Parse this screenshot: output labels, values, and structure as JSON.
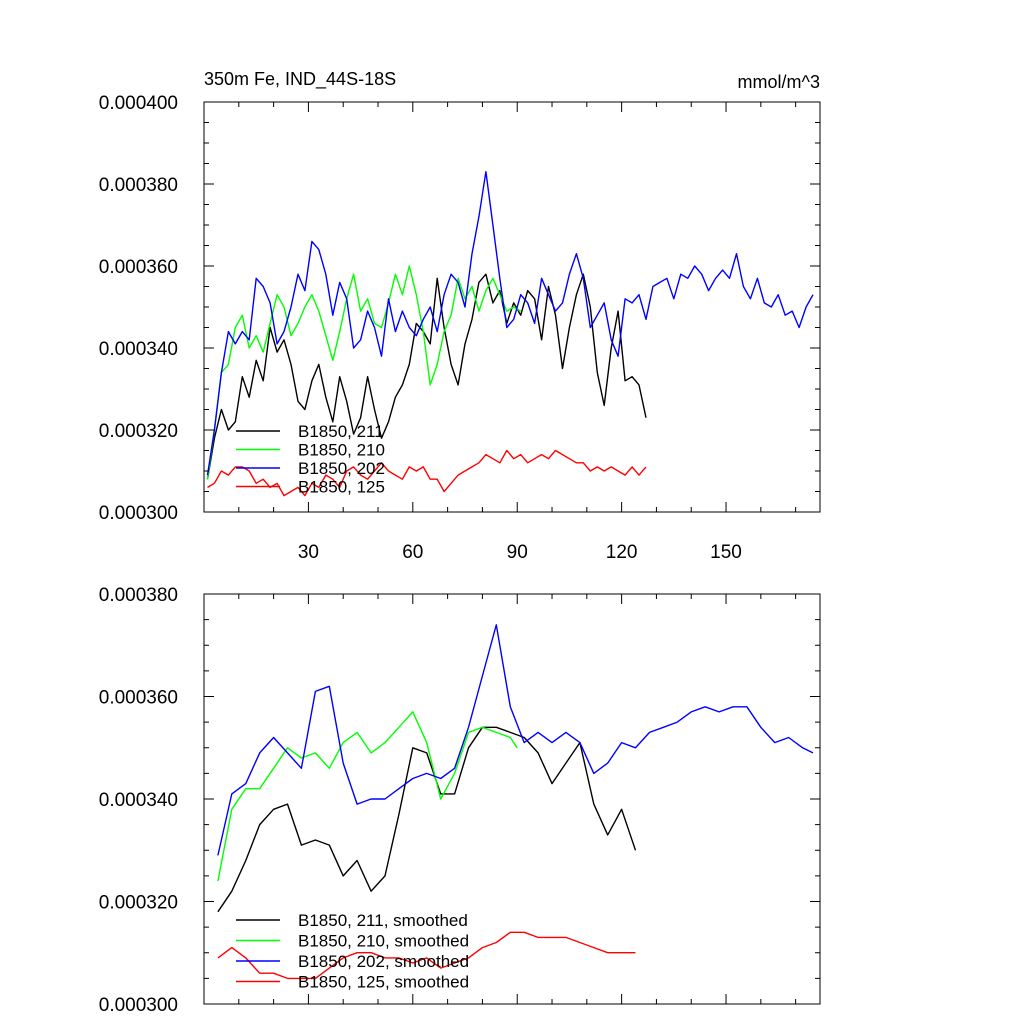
{
  "chart_data": [
    {
      "type": "line",
      "title_left": "350m Fe, IND_44S-18S",
      "title_right": "mmol/m^3",
      "xlim": [
        0,
        177
      ],
      "ylim": [
        0.0003,
        0.0004
      ],
      "x_ticks": [
        30,
        60,
        90,
        120,
        150
      ],
      "x_tick_labels": [
        "30",
        "60",
        "90",
        "120",
        "150"
      ],
      "y_ticks": [
        0.0003,
        0.00032,
        0.00034,
        0.00036,
        0.00038,
        0.0004
      ],
      "y_tick_labels": [
        "0.000300",
        "0.000320",
        "0.000340",
        "0.000360",
        "0.000380",
        "0.000400"
      ],
      "legend_position": "bottom-left",
      "series": [
        {
          "name": "B1850, 211",
          "color": "#000000",
          "x": [
            1,
            3,
            5,
            7,
            9,
            11,
            13,
            15,
            17,
            19,
            21,
            23,
            25,
            27,
            29,
            31,
            33,
            35,
            37,
            39,
            41,
            43,
            45,
            47,
            49,
            51,
            53,
            55,
            57,
            59,
            61,
            63,
            65,
            67,
            69,
            71,
            73,
            75,
            77,
            79,
            81,
            83,
            85,
            87,
            89,
            91,
            93,
            95,
            97,
            99,
            101,
            103,
            105,
            107,
            109,
            111,
            113,
            115,
            117,
            119,
            121,
            123,
            125,
            127
          ],
          "y": [
            0.000308,
            0.000318,
            0.000325,
            0.00032,
            0.000322,
            0.000333,
            0.000328,
            0.000337,
            0.000332,
            0.000345,
            0.000339,
            0.000342,
            0.000336,
            0.000327,
            0.000325,
            0.000332,
            0.000336,
            0.000328,
            0.000322,
            0.000333,
            0.000327,
            0.000319,
            0.000323,
            0.000333,
            0.000325,
            0.000318,
            0.000322,
            0.000328,
            0.000331,
            0.000336,
            0.000346,
            0.000344,
            0.000341,
            0.000357,
            0.000345,
            0.000336,
            0.000331,
            0.000341,
            0.000347,
            0.000356,
            0.000358,
            0.000351,
            0.000354,
            0.000346,
            0.000351,
            0.000348,
            0.000354,
            0.000352,
            0.000342,
            0.000355,
            0.000348,
            0.000335,
            0.000345,
            0.000353,
            0.000358,
            0.00035,
            0.000334,
            0.000326,
            0.00034,
            0.000349,
            0.000332,
            0.000333,
            0.000331,
            0.000323
          ]
        },
        {
          "name": "B1850, 210",
          "color": "#00ff00",
          "x": [
            1,
            3,
            5,
            7,
            9,
            11,
            13,
            15,
            17,
            19,
            21,
            23,
            25,
            27,
            29,
            31,
            33,
            35,
            37,
            39,
            41,
            43,
            45,
            47,
            49,
            51,
            53,
            55,
            57,
            59,
            61,
            63,
            65,
            67,
            69,
            71,
            73,
            75,
            77,
            79,
            81,
            83,
            85,
            87,
            89,
            91
          ],
          "y": [
            0.000308,
            0.00032,
            0.000334,
            0.000336,
            0.000345,
            0.000348,
            0.00034,
            0.000343,
            0.000339,
            0.000346,
            0.000353,
            0.00035,
            0.000343,
            0.000346,
            0.00035,
            0.000353,
            0.000349,
            0.000343,
            0.000337,
            0.000344,
            0.000352,
            0.000358,
            0.000349,
            0.000352,
            0.000346,
            0.000345,
            0.000351,
            0.000358,
            0.000353,
            0.00036,
            0.000353,
            0.000344,
            0.000331,
            0.000336,
            0.000344,
            0.000348,
            0.000357,
            0.000352,
            0.000355,
            0.000349,
            0.000354,
            0.000357,
            0.000353,
            0.000349,
            0.00035,
            0.000349
          ]
        },
        {
          "name": "B1850, 202",
          "color": "#0000ff",
          "x": [
            1,
            3,
            5,
            7,
            9,
            11,
            13,
            15,
            17,
            19,
            21,
            23,
            25,
            27,
            29,
            31,
            33,
            35,
            37,
            39,
            41,
            43,
            45,
            47,
            49,
            51,
            53,
            55,
            57,
            59,
            61,
            63,
            65,
            67,
            69,
            71,
            73,
            75,
            77,
            79,
            81,
            83,
            85,
            87,
            89,
            91,
            93,
            95,
            97,
            99,
            101,
            103,
            105,
            107,
            109,
            111,
            113,
            115,
            117,
            119,
            121,
            123,
            125,
            127,
            129,
            131,
            133,
            135,
            137,
            139,
            141,
            143,
            145,
            147,
            149,
            151,
            153,
            155,
            157,
            159,
            161,
            163,
            165,
            167,
            169,
            171,
            173,
            175
          ],
          "y": [
            0.000309,
            0.00032,
            0.000334,
            0.000344,
            0.000341,
            0.000344,
            0.000342,
            0.000357,
            0.000355,
            0.000351,
            0.000341,
            0.000344,
            0.00035,
            0.000358,
            0.000354,
            0.000366,
            0.000364,
            0.000358,
            0.000348,
            0.000356,
            0.000352,
            0.00034,
            0.000342,
            0.000349,
            0.000345,
            0.000338,
            0.000352,
            0.000344,
            0.000349,
            0.000345,
            0.000343,
            0.000347,
            0.00035,
            0.000344,
            0.000353,
            0.000358,
            0.000356,
            0.00035,
            0.000363,
            0.000372,
            0.000383,
            0.00037,
            0.000357,
            0.000345,
            0.000347,
            0.000353,
            0.000351,
            0.000346,
            0.000357,
            0.000353,
            0.000349,
            0.000351,
            0.000358,
            0.000363,
            0.000357,
            0.000345,
            0.000348,
            0.000351,
            0.000342,
            0.000338,
            0.000352,
            0.000351,
            0.000353,
            0.000347,
            0.000355,
            0.000356,
            0.000357,
            0.000352,
            0.000358,
            0.000357,
            0.00036,
            0.000358,
            0.000354,
            0.000357,
            0.000359,
            0.000357,
            0.000363,
            0.000355,
            0.000352,
            0.000357,
            0.000351,
            0.00035,
            0.000353,
            0.000348,
            0.000349,
            0.000345,
            0.00035,
            0.000353
          ]
        },
        {
          "name": "B1850, 125",
          "color": "#ff0000",
          "x": [
            1,
            3,
            5,
            7,
            9,
            11,
            13,
            15,
            17,
            19,
            21,
            23,
            25,
            27,
            29,
            31,
            33,
            35,
            37,
            39,
            41,
            43,
            45,
            47,
            49,
            51,
            53,
            55,
            57,
            59,
            61,
            63,
            65,
            67,
            69,
            71,
            73,
            75,
            77,
            79,
            81,
            83,
            85,
            87,
            89,
            91,
            93,
            95,
            97,
            99,
            101,
            103,
            105,
            107,
            109,
            111,
            113,
            115,
            117,
            119,
            121,
            123,
            125,
            127
          ],
          "y": [
            0.000306,
            0.000307,
            0.00031,
            0.000309,
            0.000311,
            0.000311,
            0.00031,
            0.000307,
            0.000308,
            0.000306,
            0.000307,
            0.000304,
            0.000305,
            0.000306,
            0.000304,
            0.000307,
            0.000306,
            0.000309,
            0.000308,
            0.000306,
            0.00031,
            0.000311,
            0.000309,
            0.000308,
            0.00031,
            0.000312,
            0.00031,
            0.000309,
            0.000308,
            0.000311,
            0.00031,
            0.000311,
            0.000308,
            0.000308,
            0.000305,
            0.000307,
            0.000309,
            0.00031,
            0.000311,
            0.000312,
            0.000314,
            0.000313,
            0.000312,
            0.000315,
            0.000313,
            0.000314,
            0.000312,
            0.000313,
            0.000314,
            0.000313,
            0.000315,
            0.000314,
            0.000313,
            0.000312,
            0.000312,
            0.00031,
            0.000311,
            0.00031,
            0.000311,
            0.00031,
            0.000309,
            0.000311,
            0.000309,
            0.000311
          ]
        }
      ]
    },
    {
      "type": "line",
      "xlim": [
        0,
        177
      ],
      "ylim": [
        0.0003,
        0.00038
      ],
      "x_ticks": [
        30,
        60,
        90,
        120,
        150
      ],
      "y_ticks": [
        0.0003,
        0.00032,
        0.00034,
        0.00036,
        0.00038
      ],
      "y_tick_labels": [
        "0.000300",
        "0.000320",
        "0.000340",
        "0.000360",
        "0.000380"
      ],
      "legend_position": "bottom-left",
      "series": [
        {
          "name": "B1850, 211, smoothed",
          "color": "#000000",
          "x": [
            4,
            8,
            12,
            16,
            20,
            24,
            28,
            32,
            36,
            40,
            44,
            48,
            52,
            56,
            60,
            64,
            68,
            72,
            76,
            80,
            84,
            88,
            92,
            96,
            100,
            104,
            108,
            112,
            116,
            120,
            124
          ],
          "y": [
            0.000318,
            0.000322,
            0.000328,
            0.000335,
            0.000338,
            0.000339,
            0.000331,
            0.000332,
            0.000331,
            0.000325,
            0.000328,
            0.000322,
            0.000325,
            0.000337,
            0.00035,
            0.000349,
            0.000341,
            0.000341,
            0.00035,
            0.000354,
            0.000354,
            0.000353,
            0.000352,
            0.000349,
            0.000343,
            0.000347,
            0.000351,
            0.000339,
            0.000333,
            0.000338,
            0.00033
          ]
        },
        {
          "name": "B1850, 210, smoothed",
          "color": "#00ff00",
          "x": [
            4,
            8,
            12,
            16,
            20,
            24,
            28,
            32,
            36,
            40,
            44,
            48,
            52,
            56,
            60,
            64,
            68,
            72,
            76,
            80,
            84,
            88,
            90
          ],
          "y": [
            0.000324,
            0.000338,
            0.000342,
            0.000342,
            0.000346,
            0.00035,
            0.000348,
            0.000349,
            0.000346,
            0.000351,
            0.000353,
            0.000349,
            0.000351,
            0.000354,
            0.000357,
            0.000351,
            0.00034,
            0.000345,
            0.000353,
            0.000354,
            0.000353,
            0.000352,
            0.00035
          ]
        },
        {
          "name": "B1850, 202, smoothed",
          "color": "#0000ff",
          "x": [
            4,
            8,
            12,
            16,
            20,
            24,
            28,
            32,
            36,
            40,
            44,
            48,
            52,
            56,
            60,
            64,
            68,
            72,
            76,
            80,
            84,
            88,
            92,
            96,
            100,
            104,
            108,
            112,
            116,
            120,
            124,
            128,
            132,
            136,
            140,
            144,
            148,
            152,
            156,
            160,
            164,
            168,
            172,
            175
          ],
          "y": [
            0.000329,
            0.000341,
            0.000343,
            0.000349,
            0.000352,
            0.000349,
            0.000346,
            0.000361,
            0.000362,
            0.000347,
            0.000339,
            0.00034,
            0.00034,
            0.000342,
            0.000344,
            0.000345,
            0.000344,
            0.000346,
            0.000354,
            0.000364,
            0.000374,
            0.000358,
            0.000351,
            0.000353,
            0.000351,
            0.000353,
            0.000351,
            0.000345,
            0.000347,
            0.000351,
            0.00035,
            0.000353,
            0.000354,
            0.000355,
            0.000357,
            0.000358,
            0.000357,
            0.000358,
            0.000358,
            0.000354,
            0.000351,
            0.000352,
            0.00035,
            0.000349
          ]
        },
        {
          "name": "B1850, 125, smoothed",
          "color": "#ff0000",
          "x": [
            4,
            8,
            12,
            16,
            20,
            24,
            28,
            32,
            36,
            40,
            44,
            48,
            52,
            56,
            60,
            64,
            68,
            72,
            76,
            80,
            84,
            88,
            92,
            96,
            100,
            104,
            108,
            112,
            116,
            120,
            124
          ],
          "y": [
            0.000309,
            0.000311,
            0.000309,
            0.000306,
            0.000306,
            0.000305,
            0.000305,
            0.000305,
            0.000307,
            0.000309,
            0.00031,
            0.00031,
            0.000309,
            0.000309,
            0.000308,
            0.000309,
            0.000307,
            0.000308,
            0.000309,
            0.000311,
            0.000312,
            0.000314,
            0.000314,
            0.000313,
            0.000313,
            0.000313,
            0.000312,
            0.000311,
            0.00031,
            0.00031,
            0.00031
          ]
        }
      ]
    }
  ]
}
